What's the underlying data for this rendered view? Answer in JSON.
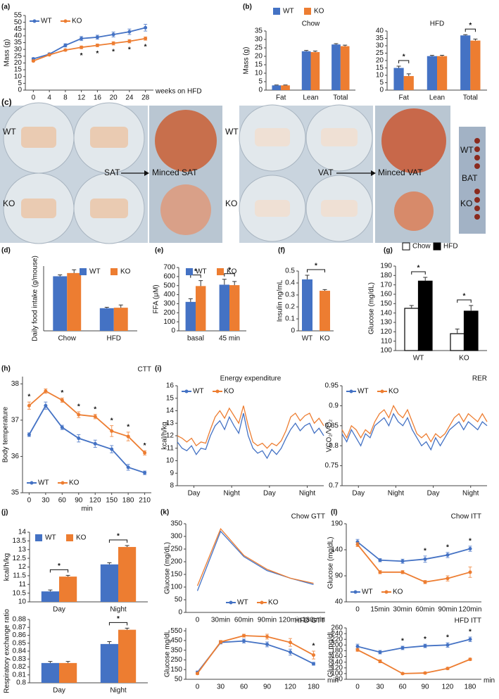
{
  "chart_data": [
    {
      "panel": "(a)",
      "type": "line",
      "ylabel": "Mass (g)",
      "xlabel": "weeks on HFD",
      "x": [
        0,
        4,
        8,
        12,
        16,
        20,
        24,
        28
      ],
      "xlim": [
        -2,
        30
      ],
      "xticks": [
        0,
        4,
        8,
        12,
        16,
        20,
        24,
        28
      ],
      "ylim": [
        0,
        55
      ],
      "yticks": [
        0,
        5,
        10,
        15,
        20,
        25,
        30,
        35,
        40,
        45,
        50,
        55
      ],
      "legend": "top-left",
      "markers": true,
      "sig_below": true,
      "sig": [
        null,
        null,
        null,
        "*",
        "*",
        "*",
        "*",
        "*"
      ],
      "series": [
        {
          "name": "WT",
          "color": "#4472c4",
          "values": [
            23,
            26.5,
            33,
            38,
            39,
            41,
            43,
            46
          ],
          "errors": [
            0.8,
            0.8,
            1.2,
            1.5,
            1.5,
            1.8,
            2,
            2.5
          ]
        },
        {
          "name": "KO",
          "color": "#ed7d31",
          "values": [
            21.5,
            26,
            29.5,
            31.5,
            33,
            34.5,
            36,
            38
          ],
          "errors": [
            0.6,
            0.6,
            0.8,
            1,
            1,
            1.2,
            1.2,
            1.2
          ]
        }
      ]
    },
    {
      "panel": "(b)",
      "type": "bar",
      "title": "Chow",
      "ylabel": "Mass (g)",
      "categories": [
        "Fat",
        "Lean",
        "Total"
      ],
      "ylim": [
        0,
        35
      ],
      "yticks": [
        0,
        5,
        10,
        15,
        20,
        25,
        30,
        35
      ],
      "legend": "above",
      "series": [
        {
          "name": "WT",
          "color": "#4472c4",
          "values": [
            2.8,
            23,
            27
          ],
          "errors": [
            0.2,
            0.5,
            0.5
          ]
        },
        {
          "name": "KO",
          "color": "#ed7d31",
          "values": [
            2.8,
            22.5,
            26
          ],
          "errors": [
            0.2,
            0.6,
            0.6
          ]
        }
      ]
    },
    {
      "type": "bar",
      "title": "HFD",
      "categories": [
        "Fat",
        "Lean",
        "Total"
      ],
      "ylim": [
        0,
        40
      ],
      "yticks": [
        0,
        5,
        10,
        15,
        20,
        25,
        30,
        35,
        40
      ],
      "sig": [
        "*",
        null,
        "*"
      ],
      "series": [
        {
          "color": "#4472c4",
          "values": [
            15,
            23,
            37
          ],
          "errors": [
            1.2,
            0.5,
            0.5
          ]
        },
        {
          "color": "#ed7d31",
          "values": [
            9.5,
            23,
            33.5
          ],
          "errors": [
            1.5,
            0.6,
            1
          ]
        }
      ]
    },
    {
      "panel": "(d)",
      "type": "bar",
      "ylabel": "Daily food intake (g/mouse)",
      "categories": [
        "Chow",
        "HFD"
      ],
      "ylim": [
        0,
        7
      ],
      "legend": "top-right",
      "series": [
        {
          "name": "WT",
          "color": "#4472c4",
          "values": [
            5.9,
            2.45
          ],
          "errors": [
            0.15,
            0.1
          ]
        },
        {
          "name": "KO",
          "color": "#ed7d31",
          "values": [
            6.25,
            2.5
          ],
          "errors": [
            0.35,
            0.3
          ]
        }
      ]
    },
    {
      "panel": "(e)",
      "type": "bar",
      "ylabel": "FFA (μM)",
      "categories": [
        "basal",
        "45 min"
      ],
      "ylim": [
        0,
        700
      ],
      "yticks": [
        0,
        100,
        200,
        300,
        400,
        500,
        600,
        700
      ],
      "legend": "top",
      "sig": [
        "*",
        "*"
      ],
      "series": [
        {
          "name": "WT",
          "color": "#4472c4",
          "values": [
            320,
            510
          ],
          "errors": [
            35,
            60
          ]
        },
        {
          "name": "KO",
          "color": "#ed7d31",
          "values": [
            495,
            505
          ],
          "errors": [
            60,
            40
          ]
        }
      ]
    },
    {
      "panel": "(f)",
      "type": "bar",
      "ylabel": "Insulin ng/mL",
      "categories": [
        "WT",
        "KO"
      ],
      "ylim": [
        0,
        0.5
      ],
      "yticks": [
        0,
        0.1,
        0.2,
        0.3,
        0.4,
        0.5
      ],
      "sig_across": "*",
      "series": [
        {
          "colors": [
            "#4472c4",
            "#ed7d31"
          ],
          "values": [
            0.43,
            0.335
          ],
          "errors": [
            0.035,
            0.01
          ]
        }
      ]
    },
    {
      "panel": "(g)",
      "type": "bar",
      "ylabel": "Glucose (mg/dL)",
      "categories": [
        "WT",
        "KO"
      ],
      "ylim": [
        100,
        190
      ],
      "yticks": [
        100,
        110,
        120,
        130,
        140,
        150,
        160,
        170,
        180,
        190
      ],
      "edgecolor": "#000000",
      "legend": "above",
      "sig": [
        "*",
        "*"
      ],
      "series": [
        {
          "name": "Chow",
          "color": "#ffffff",
          "values": [
            145,
            118
          ],
          "errors": [
            3,
            5
          ]
        },
        {
          "name": "HFD",
          "color": "#000000",
          "values": [
            174,
            142
          ],
          "errors": [
            4,
            6
          ]
        }
      ]
    },
    {
      "panel": "(h)",
      "type": "line",
      "title": "CTT",
      "ylabel": "Body temperature",
      "xlabel": "min",
      "x": [
        0,
        30,
        60,
        90,
        120,
        150,
        180,
        210
      ],
      "xlim": [
        -12,
        222
      ],
      "xticks": [
        0,
        30,
        60,
        90,
        120,
        150,
        180,
        210
      ],
      "ylim": [
        35,
        38.2
      ],
      "yticks": [
        35,
        36,
        37,
        38
      ],
      "legend": "bottom-left",
      "markers": true,
      "sig": [
        "*",
        null,
        "*",
        "*",
        "*",
        "*",
        "*",
        "*"
      ],
      "series": [
        {
          "name": "WT",
          "color": "#4472c4",
          "values": [
            36.6,
            37.4,
            36.8,
            36.5,
            36.35,
            36.2,
            35.7,
            35.55
          ],
          "errors": [
            0.05,
            0.1,
            0.06,
            0.1,
            0.1,
            0.1,
            0.08,
            0.05
          ]
        },
        {
          "name": "KO",
          "color": "#ed7d31",
          "values": [
            37.4,
            37.8,
            37.55,
            37.15,
            37.1,
            36.7,
            36.55,
            36.1
          ],
          "errors": [
            0.1,
            0.06,
            0.06,
            0.08,
            0.06,
            0.15,
            0.12,
            0.06
          ]
        }
      ]
    },
    {
      "panel": "(i)",
      "type": "line",
      "title": "Energy expenditure",
      "ylabel": "kcal/h/kg",
      "x": [
        0,
        1,
        2,
        3,
        4,
        5,
        6,
        7,
        8,
        9,
        10,
        11,
        12,
        13,
        14,
        15,
        16,
        17,
        18,
        19,
        20,
        21,
        22,
        23,
        24,
        25,
        26,
        27,
        28,
        29,
        30,
        31
      ],
      "xlim": [
        0,
        31
      ],
      "xticks": [
        {
          "value": 3.5,
          "label": "Day"
        },
        {
          "value": 11.5,
          "label": "Night"
        },
        {
          "value": 19.5,
          "label": "Day"
        },
        {
          "value": 27.5,
          "label": "Night"
        }
      ],
      "ylim": [
        8,
        16
      ],
      "yticks": [
        8,
        9,
        10,
        11,
        12,
        13,
        14,
        15,
        16
      ],
      "legend": "top-left",
      "markers": false,
      "series": [
        {
          "name": "WT",
          "color": "#4472c4",
          "values": [
            11.5,
            11.0,
            10.8,
            11.2,
            10.5,
            11.0,
            10.9,
            12.0,
            12.8,
            13.2,
            12.5,
            13.5,
            12.8,
            12.2,
            13.8,
            12.0,
            11.0,
            10.6,
            10.8,
            10.2,
            10.9,
            10.5,
            11.0,
            11.8,
            12.5,
            13.0,
            12.4,
            12.8,
            13.0,
            12.2,
            12.6,
            12.0
          ]
        },
        {
          "name": "KO",
          "color": "#ed7d31",
          "values": [
            12.0,
            11.8,
            11.5,
            11.8,
            11.2,
            11.5,
            11.4,
            12.5,
            13.5,
            14.0,
            13.4,
            14.2,
            13.6,
            13.0,
            14.4,
            12.8,
            11.5,
            11.2,
            11.4,
            11.0,
            11.4,
            11.2,
            11.6,
            12.4,
            13.5,
            13.8,
            13.2,
            13.6,
            13.8,
            13.0,
            13.4,
            12.8
          ]
        }
      ]
    },
    {
      "type": "line",
      "title": "RER",
      "ylabel": "VCO₂/VO₂",
      "x": [
        0,
        1,
        2,
        3,
        4,
        5,
        6,
        7,
        8,
        9,
        10,
        11,
        12,
        13,
        14,
        15,
        16,
        17,
        18,
        19,
        20,
        21,
        22,
        23,
        24,
        25,
        26,
        27,
        28,
        29,
        30,
        31
      ],
      "xlim": [
        0,
        31
      ],
      "xticks": [
        {
          "value": 3.5,
          "label": "Day"
        },
        {
          "value": 11.5,
          "label": "Night"
        },
        {
          "value": 19.5,
          "label": "Day"
        },
        {
          "value": 27.5,
          "label": "Night"
        }
      ],
      "ylim": [
        0.7,
        0.95
      ],
      "yticks": [
        0.7,
        0.75,
        0.8,
        0.85,
        0.9,
        0.95
      ],
      "legend": "top-left",
      "markers": false,
      "series": [
        {
          "name": "WT",
          "color": "#4472c4",
          "values": [
            0.83,
            0.81,
            0.84,
            0.82,
            0.8,
            0.83,
            0.82,
            0.85,
            0.86,
            0.87,
            0.85,
            0.88,
            0.86,
            0.85,
            0.87,
            0.84,
            0.82,
            0.8,
            0.81,
            0.79,
            0.82,
            0.8,
            0.82,
            0.84,
            0.85,
            0.86,
            0.84,
            0.86,
            0.85,
            0.84,
            0.86,
            0.85
          ]
        },
        {
          "name": "KO",
          "color": "#ed7d31",
          "values": [
            0.84,
            0.82,
            0.85,
            0.84,
            0.82,
            0.84,
            0.83,
            0.86,
            0.88,
            0.89,
            0.87,
            0.9,
            0.88,
            0.87,
            0.89,
            0.86,
            0.83,
            0.82,
            0.83,
            0.81,
            0.83,
            0.82,
            0.83,
            0.85,
            0.87,
            0.88,
            0.86,
            0.88,
            0.87,
            0.86,
            0.88,
            0.86
          ]
        }
      ]
    },
    {
      "panel": "(j)",
      "type": "bar",
      "ylabel": "kcal/h/kg",
      "categories": [
        "Day",
        "Night"
      ],
      "ylim": [
        10,
        14
      ],
      "yticks": [
        10,
        10.5,
        11,
        11.5,
        12,
        12.5,
        13,
        13.5,
        14
      ],
      "legend": "top-left",
      "sig": [
        "*",
        "*"
      ],
      "series": [
        {
          "name": "WT",
          "color": "#4472c4",
          "values": [
            10.6,
            12.15
          ],
          "errors": [
            0.08,
            0.1
          ]
        },
        {
          "name": "KO",
          "color": "#ed7d31",
          "values": [
            11.45,
            13.15
          ],
          "errors": [
            0.07,
            0.08
          ]
        }
      ]
    },
    {
      "type": "bar",
      "ylabel": "Respiratory exchange ratio",
      "categories": [
        "Day",
        "Night"
      ],
      "ylim": [
        0.8,
        0.88
      ],
      "yticks": [
        0.8,
        0.81,
        0.82,
        0.83,
        0.84,
        0.85,
        0.86,
        0.87,
        0.88
      ],
      "sig": [
        null,
        "*"
      ],
      "series": [
        {
          "color": "#4472c4",
          "values": [
            0.825,
            0.849
          ],
          "errors": [
            0.002,
            0.003
          ]
        },
        {
          "color": "#ed7d31",
          "values": [
            0.825,
            0.867
          ],
          "errors": [
            0.002,
            0.002
          ]
        }
      ]
    },
    {
      "panel": "(k)",
      "type": "line",
      "title": "Chow GTT",
      "ylabel": "Glucose (mg/dL)",
      "categories": [
        "0",
        "30min",
        "60min",
        "90min",
        "120min",
        "180min"
      ],
      "ylim": [
        0,
        350
      ],
      "yticks": [
        0,
        50,
        100,
        150,
        200,
        250,
        300,
        350
      ],
      "legend": "bottom",
      "markers": false,
      "series": [
        {
          "name": "WT",
          "color": "#4472c4",
          "values": [
            85,
            320,
            220,
            165,
            135,
            110
          ]
        },
        {
          "name": "KO",
          "color": "#ed7d31",
          "values": [
            105,
            330,
            225,
            170,
            135,
            115
          ]
        }
      ]
    },
    {
      "type": "line",
      "title": "HFD GTT",
      "ylabel": "Glucose mg/dL",
      "xlabel": "min",
      "categories": [
        "0",
        "30",
        "60",
        "90",
        "120",
        "180"
      ],
      "ylim": [
        50,
        580
      ],
      "yticks": [
        50,
        150,
        250,
        350,
        450,
        550
      ],
      "markers": true,
      "sig": [
        null,
        null,
        null,
        null,
        null,
        "*"
      ],
      "series": [
        {
          "color": "#4472c4",
          "values": [
            120,
            430,
            445,
            410,
            330,
            210
          ],
          "errors": [
            15,
            15,
            20,
            25,
            30,
            15
          ]
        },
        {
          "color": "#ed7d31",
          "values": [
            110,
            435,
            500,
            490,
            430,
            300
          ],
          "errors": [
            10,
            15,
            15,
            25,
            40,
            40
          ]
        }
      ]
    },
    {
      "panel": "(l)",
      "type": "line",
      "title": "Chow ITT",
      "ylabel": "Glucose (mg/dL)",
      "categories": [
        "0",
        "15min",
        "30min",
        "60min",
        "90min",
        "120min"
      ],
      "ylim": [
        40,
        190
      ],
      "yticks": [
        40,
        90,
        140,
        190
      ],
      "legend": "bottom-left",
      "markers": true,
      "sig": [
        null,
        null,
        null,
        "*",
        "*",
        "*"
      ],
      "series": [
        {
          "name": "WT",
          "color": "#4472c4",
          "values": [
            155,
            120,
            118,
            122,
            130,
            142
          ],
          "errors": [
            5,
            3,
            4,
            6,
            5,
            5
          ]
        },
        {
          "name": "KO",
          "color": "#ed7d31",
          "values": [
            150,
            97,
            97,
            78,
            85,
            97
          ],
          "errors": [
            4,
            3,
            3,
            3,
            5,
            10
          ]
        }
      ]
    },
    {
      "type": "line",
      "title": "HFD ITT",
      "ylabel": "Glucose mg/dL",
      "xlabel": "min",
      "categories": [
        "0",
        "30",
        "60",
        "90",
        "120",
        "180"
      ],
      "ylim": [
        80,
        260
      ],
      "yticks": [
        80,
        100,
        120,
        140,
        160,
        180,
        200,
        220,
        240,
        260
      ],
      "markers": true,
      "sig": [
        null,
        null,
        "*",
        "*",
        "*",
        "*"
      ],
      "series": [
        {
          "color": "#4472c4",
          "values": [
            195,
            175,
            190,
            197,
            200,
            220
          ],
          "errors": [
            8,
            6,
            6,
            6,
            8,
            8
          ]
        },
        {
          "color": "#ed7d31",
          "values": [
            183,
            143,
            100,
            102,
            118,
            150
          ],
          "errors": [
            5,
            5,
            3,
            3,
            4,
            4
          ]
        }
      ]
    }
  ],
  "photo": {
    "panel": "(c)",
    "sat": {
      "rows": [
        "WT",
        "KO"
      ],
      "tissue": "SAT",
      "minced": "Minced SAT"
    },
    "vat": {
      "rows": [
        "WT",
        "KO"
      ],
      "tissue": "VAT",
      "minced": "Minced VAT"
    },
    "bat": {
      "rows": [
        "WT",
        "KO"
      ],
      "tissue": "BAT"
    }
  }
}
